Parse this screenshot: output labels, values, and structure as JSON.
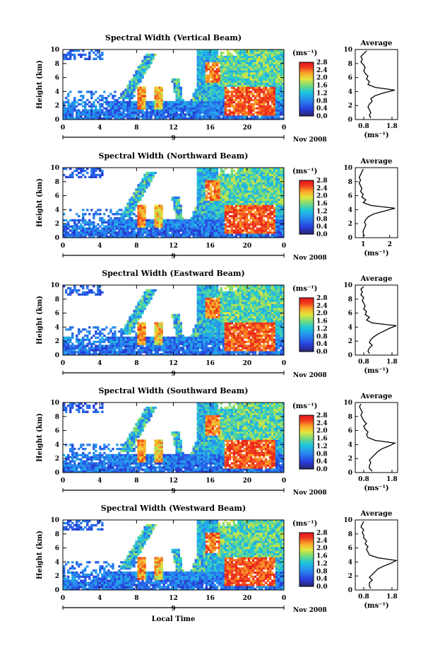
{
  "chart_data": [
    {
      "type": "heatmap",
      "title": "Spectral Width (Vertical Beam)",
      "ylabel": "Height (km)",
      "yticks": [
        "0",
        "2",
        "4",
        "6",
        "8",
        "10"
      ],
      "ylim": [
        0,
        10
      ],
      "xticks": [
        "0",
        "4",
        "8",
        "12",
        "16",
        "20",
        "0"
      ],
      "xlim": [
        0,
        24
      ],
      "date_center": "9",
      "date_right": "Nov 2008",
      "colorbar": {
        "unit": "(ms⁻¹)",
        "ticks": [
          "0.0",
          "0.4",
          "0.8",
          "1.2",
          "1.6",
          "2.0",
          "2.4",
          "2.8"
        ],
        "range": [
          0,
          2.8
        ]
      },
      "average": {
        "title": "Average",
        "xlabel": "(ms⁻¹)",
        "xticks": [
          "0.8",
          "1.8"
        ],
        "xlim": [
          0.5,
          2.0
        ],
        "ylim": [
          0,
          10
        ],
        "yticks": [
          "0",
          "2",
          "4",
          "6",
          "8",
          "10"
        ],
        "height": [
          0.2,
          0.6,
          1.0,
          1.4,
          1.8,
          2.2,
          2.6,
          3.0,
          3.4,
          3.8,
          4.2,
          4.6,
          5.0,
          5.4,
          5.8,
          6.2,
          6.6,
          7.0,
          7.4,
          7.8,
          8.2,
          8.6,
          9.0,
          9.4,
          9.8
        ],
        "value": [
          1.05,
          1.0,
          1.05,
          1.0,
          0.95,
          1.0,
          1.1,
          1.05,
          1.2,
          1.5,
          1.9,
          1.2,
          0.95,
          1.0,
          0.9,
          0.95,
          0.85,
          0.8,
          0.85,
          0.8,
          0.7,
          0.75,
          0.7,
          0.8,
          0.9
        ]
      }
    },
    {
      "type": "heatmap",
      "title": "Spectral Width (Northward Beam)",
      "ylabel": "Height (km)",
      "yticks": [
        "0",
        "2",
        "4",
        "6",
        "8",
        "10"
      ],
      "ylim": [
        0,
        10
      ],
      "xticks": [
        "0",
        "4",
        "8",
        "12",
        "16",
        "20",
        "0"
      ],
      "xlim": [
        0,
        24
      ],
      "date_center": "9",
      "date_right": "Nov 2008",
      "colorbar": {
        "unit": "(ms⁻¹)",
        "ticks": [
          "0.0",
          "0.4",
          "0.8",
          "1.2",
          "1.6",
          "2.0",
          "2.4",
          "2.8"
        ],
        "range": [
          0,
          2.8
        ]
      },
      "average": {
        "title": "Average",
        "xlabel": "(ms⁻¹)",
        "xticks": [
          "1",
          "2"
        ],
        "xlim": [
          0.7,
          2.3
        ],
        "ylim": [
          0,
          10
        ],
        "yticks": [
          "0",
          "2",
          "4",
          "6",
          "8",
          "10"
        ],
        "height": [
          0.2,
          0.6,
          1.0,
          1.4,
          1.8,
          2.2,
          2.6,
          3.0,
          3.4,
          3.8,
          4.2,
          4.6,
          5.0,
          5.4,
          5.8,
          6.2,
          6.6,
          7.0,
          7.4,
          7.8,
          8.2,
          8.6,
          9.0,
          9.4,
          9.8
        ],
        "value": [
          1.05,
          1.0,
          1.0,
          1.05,
          1.1,
          1.05,
          1.1,
          1.2,
          1.4,
          1.8,
          2.2,
          1.3,
          1.0,
          1.1,
          0.95,
          1.0,
          0.9,
          0.95,
          0.9,
          0.85,
          0.9,
          0.85,
          0.9,
          0.95,
          1.0
        ]
      }
    },
    {
      "type": "heatmap",
      "title": "Spectral Width (Eastward Beam)",
      "ylabel": "Height (km)",
      "yticks": [
        "0",
        "2",
        "4",
        "6",
        "8",
        "10"
      ],
      "ylim": [
        0,
        10
      ],
      "xticks": [
        "0",
        "4",
        "8",
        "12",
        "16",
        "20",
        "0"
      ],
      "xlim": [
        0,
        24
      ],
      "date_center": "9",
      "date_right": "Nov 2008",
      "colorbar": {
        "unit": "(ms⁻¹)",
        "ticks": [
          "0.0",
          "0.4",
          "0.8",
          "1.2",
          "1.6",
          "2.0",
          "2.4",
          "2.8"
        ],
        "range": [
          0,
          2.8
        ]
      },
      "average": {
        "title": "Average",
        "xlabel": "(ms⁻¹)",
        "xticks": [
          "0.8",
          "1.8"
        ],
        "xlim": [
          0.5,
          2.0
        ],
        "ylim": [
          0,
          10
        ],
        "yticks": [
          "0",
          "2",
          "4",
          "6",
          "8",
          "10"
        ],
        "height": [
          0.2,
          0.6,
          1.0,
          1.4,
          1.8,
          2.2,
          2.6,
          3.0,
          3.4,
          3.8,
          4.2,
          4.6,
          5.0,
          5.4,
          5.8,
          6.2,
          6.6,
          7.0,
          7.4,
          7.8,
          8.2,
          8.6,
          9.0,
          9.4,
          9.8
        ],
        "value": [
          1.0,
          0.95,
          1.0,
          1.1,
          1.0,
          1.05,
          1.15,
          1.3,
          1.5,
          1.7,
          1.95,
          1.1,
          0.9,
          1.0,
          0.85,
          0.9,
          0.8,
          0.85,
          0.8,
          0.75,
          0.8,
          0.7,
          0.75,
          0.7,
          0.8
        ]
      }
    },
    {
      "type": "heatmap",
      "title": "Spectral Width (Southward Beam)",
      "ylabel": "Height (km)",
      "yticks": [
        "0",
        "2",
        "4",
        "6",
        "8",
        "10"
      ],
      "ylim": [
        0,
        10
      ],
      "xticks": [
        "0",
        "4",
        "8",
        "12",
        "16",
        "20",
        "0"
      ],
      "xlim": [
        0,
        24
      ],
      "date_center": "9",
      "date_right": "Nov 2008",
      "colorbar": {
        "unit": "(ms⁻¹)",
        "ticks": [
          "0.0",
          "0.4",
          "0.8",
          "1.2",
          "1.6",
          "2.0",
          "2.4",
          "2.8"
        ],
        "range": [
          0,
          2.8
        ]
      },
      "average": {
        "title": "Average",
        "xlabel": "(ms⁻¹)",
        "xticks": [
          "0.8",
          "1.8"
        ],
        "xlim": [
          0.5,
          2.0
        ],
        "ylim": [
          0,
          10
        ],
        "yticks": [
          "0",
          "2",
          "4",
          "6",
          "8",
          "10"
        ],
        "height": [
          0.2,
          0.6,
          1.0,
          1.4,
          1.8,
          2.2,
          2.6,
          3.0,
          3.4,
          3.8,
          4.2,
          4.6,
          5.0,
          5.4,
          5.8,
          6.2,
          6.6,
          7.0,
          7.4,
          7.8,
          8.2,
          8.6,
          9.0,
          9.4,
          9.8
        ],
        "value": [
          1.1,
          1.0,
          1.0,
          1.05,
          1.0,
          1.1,
          1.2,
          1.3,
          1.45,
          1.7,
          1.9,
          1.2,
          0.95,
          0.9,
          0.95,
          0.85,
          0.8,
          0.9,
          0.8,
          0.75,
          0.7,
          0.75,
          0.7,
          0.65,
          0.7
        ]
      }
    },
    {
      "type": "heatmap",
      "title": "Spectral Width (Westward Beam)",
      "ylabel": "Height (km)",
      "yticks": [
        "0",
        "2",
        "4",
        "6",
        "8",
        "10"
      ],
      "ylim": [
        0,
        10
      ],
      "xticks": [
        "0",
        "4",
        "8",
        "12",
        "16",
        "20",
        "0"
      ],
      "xlim": [
        0,
        24
      ],
      "date_center": "9",
      "date_right": "Nov 2008",
      "xlabel": "Local Time",
      "colorbar": {
        "unit": "(ms⁻¹)",
        "ticks": [
          "0.0",
          "0.4",
          "0.8",
          "1.2",
          "1.6",
          "2.0",
          "2.4",
          "2.8"
        ],
        "range": [
          0,
          2.8
        ]
      },
      "average": {
        "title": "Average",
        "xlabel": "(ms⁻¹)",
        "xticks": [
          "0.8",
          "1.8"
        ],
        "xlim": [
          0.5,
          2.0
        ],
        "ylim": [
          0,
          10
        ],
        "yticks": [
          "0",
          "2",
          "4",
          "6",
          "8",
          "10"
        ],
        "height": [
          0.2,
          0.6,
          1.0,
          1.4,
          1.8,
          2.2,
          2.6,
          3.0,
          3.4,
          3.8,
          4.2,
          4.6,
          5.0,
          5.4,
          5.8,
          6.2,
          6.6,
          7.0,
          7.4,
          7.8,
          8.2,
          8.6,
          9.0,
          9.4,
          9.8
        ],
        "value": [
          1.05,
          1.0,
          1.0,
          1.1,
          1.0,
          1.1,
          1.2,
          1.3,
          1.5,
          1.75,
          1.95,
          1.3,
          1.0,
          0.95,
          0.9,
          0.95,
          0.85,
          0.9,
          0.8,
          0.8,
          0.75,
          0.8,
          0.7,
          0.75,
          0.8
        ]
      }
    }
  ]
}
